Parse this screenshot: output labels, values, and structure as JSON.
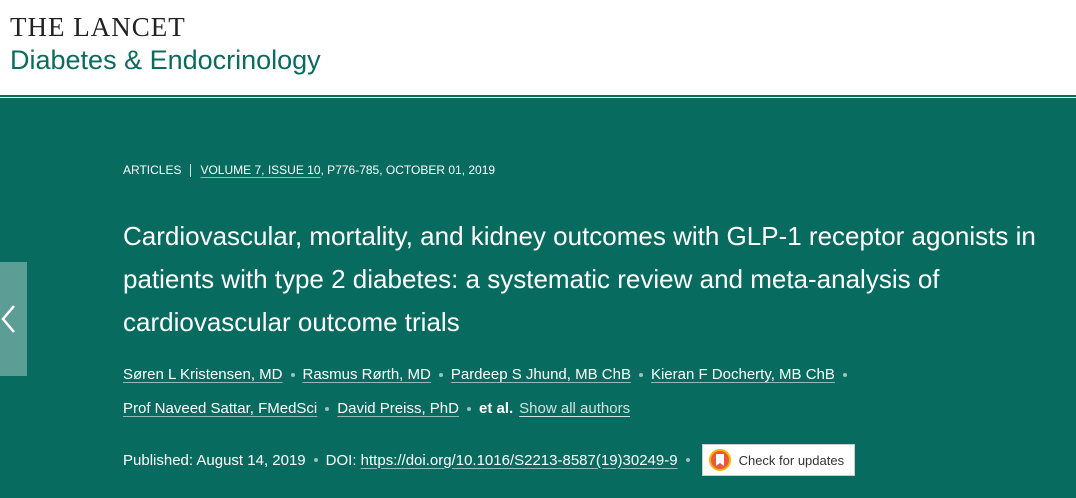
{
  "header": {
    "publisher": "THE LANCET",
    "journal": "Diabetes & Endocrinology"
  },
  "article": {
    "type": "ARTICLES",
    "volume_issue": "VOLUME 7, ISSUE 10",
    "pages_date": ", P776-785, OCTOBER 01, 2019",
    "title": "Cardiovascular, mortality, and kidney outcomes with GLP-1 receptor agonists in patients with type 2 diabetes: a systematic review and meta-analysis of cardiovascular outcome trials",
    "authors": [
      "Søren L Kristensen, MD",
      "Rasmus Rørth, MD",
      "Pardeep S Jhund, MB ChB",
      "Kieran F Docherty, MB ChB",
      "Prof Naveed Sattar, FMedSci",
      "David Preiss, PhD"
    ],
    "et_al": "et al.",
    "show_all": "Show all authors",
    "published": "Published: August 14, 2019",
    "doi_label": "DOI:",
    "doi": "https://doi.org/10.1016/S2213-8587(19)30249-9",
    "check_updates": "Check for updates"
  }
}
